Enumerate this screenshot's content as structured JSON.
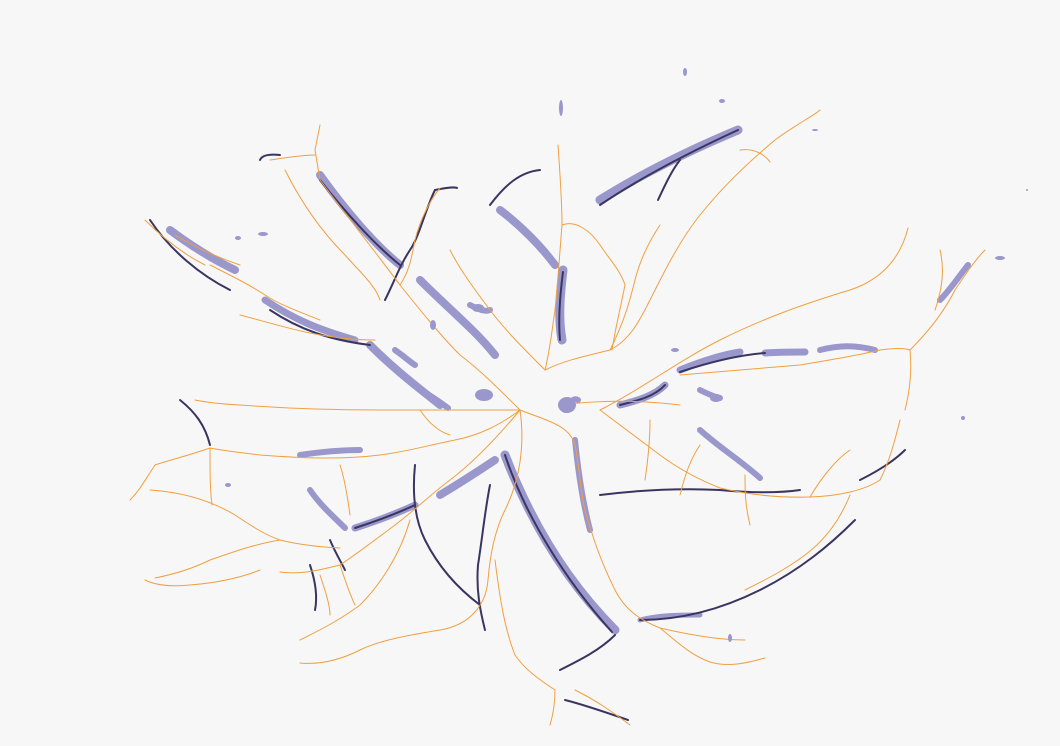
{
  "scene": {
    "description_tags": [
      "vessel-segmentation-overlay",
      "retinal-vasculature"
    ],
    "colors": {
      "background": "#f7f7f7",
      "vessel_fill": "#9a97cc",
      "vessel_core": "#3a3560",
      "centerline": "#f0a040"
    }
  }
}
